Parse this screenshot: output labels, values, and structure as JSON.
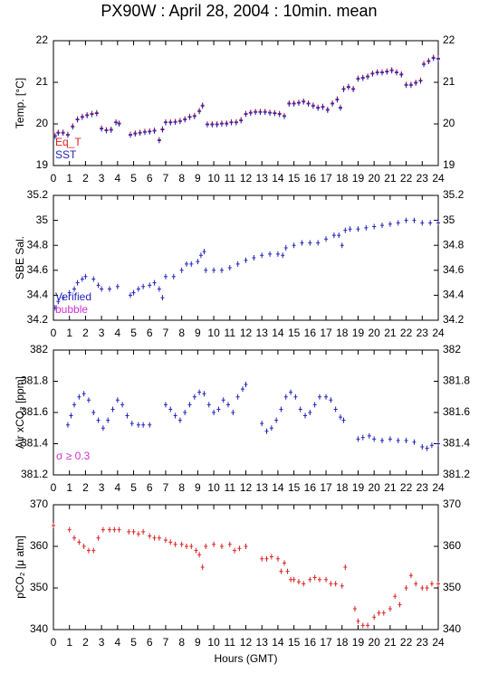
{
  "title": "PX90W : April 28, 2004 : 10min. mean",
  "chart_data": [
    {
      "type": "scatter",
      "ylabel": "Temp. [°C]",
      "legend": "lower left",
      "xlim": [
        0,
        24
      ],
      "xticks": [
        0,
        1,
        2,
        3,
        4,
        5,
        6,
        7,
        8,
        9,
        10,
        11,
        12,
        13,
        14,
        15,
        16,
        17,
        18,
        19,
        20,
        21,
        22,
        23,
        24
      ],
      "ylim": [
        19,
        22
      ],
      "yticks": [
        19,
        20,
        21,
        22
      ],
      "x": [
        0.1,
        0.3,
        0.6,
        0.9,
        1.2,
        1.5,
        1.8,
        2.1,
        2.4,
        2.7,
        3.0,
        3.3,
        3.6,
        3.9,
        4.1,
        4.8,
        5.1,
        5.4,
        5.7,
        6.0,
        6.3,
        6.6,
        6.8,
        7.0,
        7.3,
        7.6,
        7.9,
        8.2,
        8.5,
        8.8,
        9.1,
        9.3,
        9.6,
        9.9,
        10.2,
        10.5,
        10.8,
        11.1,
        11.4,
        11.7,
        12.0,
        12.3,
        12.6,
        12.9,
        13.2,
        13.5,
        13.8,
        14.1,
        14.4,
        14.7,
        15.0,
        15.3,
        15.6,
        15.9,
        16.2,
        16.5,
        16.8,
        17.1,
        17.4,
        17.7,
        17.9,
        18.1,
        18.4,
        18.7,
        19.0,
        19.3,
        19.6,
        19.9,
        20.2,
        20.5,
        20.8,
        21.1,
        21.4,
        21.7,
        22.0,
        22.3,
        22.6,
        22.9,
        23.1,
        23.4,
        23.7,
        24.0
      ],
      "series": [
        {
          "name": "Eq_T",
          "color": "#dd2222",
          "values": [
            19.72,
            19.8,
            19.8,
            19.75,
            19.95,
            20.12,
            20.18,
            20.22,
            20.25,
            20.27,
            19.9,
            19.86,
            19.87,
            20.05,
            20.02,
            19.75,
            19.78,
            19.8,
            19.82,
            19.83,
            19.85,
            19.62,
            19.88,
            20.05,
            20.05,
            20.06,
            20.08,
            20.12,
            20.18,
            20.2,
            20.32,
            20.45,
            20.0,
            20.0,
            20.0,
            20.02,
            20.02,
            20.05,
            20.05,
            20.1,
            20.25,
            20.28,
            20.3,
            20.3,
            20.3,
            20.28,
            20.27,
            20.25,
            20.2,
            20.5,
            20.5,
            20.52,
            20.55,
            20.5,
            20.45,
            20.4,
            20.42,
            20.35,
            20.5,
            20.6,
            20.4,
            20.85,
            20.9,
            20.85,
            21.1,
            21.12,
            21.15,
            21.22,
            21.25,
            21.25,
            21.27,
            21.3,
            21.25,
            21.2,
            20.95,
            20.95,
            21.0,
            21.05,
            21.45,
            21.52,
            21.6,
            21.58
          ]
        },
        {
          "name": "SST",
          "color": "#2222bb",
          "values": [
            19.7,
            19.78,
            19.78,
            19.73,
            19.93,
            20.1,
            20.16,
            20.2,
            20.23,
            20.25,
            19.88,
            19.84,
            19.85,
            20.03,
            20.0,
            19.73,
            19.76,
            19.78,
            19.8,
            19.81,
            19.83,
            19.6,
            19.86,
            20.03,
            20.03,
            20.04,
            20.06,
            20.1,
            20.16,
            20.18,
            20.3,
            20.43,
            19.98,
            19.98,
            19.98,
            20.0,
            20.0,
            20.03,
            20.03,
            20.08,
            20.23,
            20.26,
            20.28,
            20.28,
            20.28,
            20.26,
            20.25,
            20.23,
            20.18,
            20.48,
            20.48,
            20.5,
            20.53,
            20.48,
            20.43,
            20.38,
            20.4,
            20.33,
            20.48,
            20.58,
            20.38,
            20.83,
            20.88,
            20.83,
            21.08,
            21.1,
            21.13,
            21.2,
            21.23,
            21.23,
            21.25,
            21.28,
            21.23,
            21.18,
            20.93,
            20.93,
            20.98,
            21.03,
            21.43,
            21.5,
            21.58,
            21.56
          ]
        }
      ]
    },
    {
      "type": "scatter",
      "ylabel": "SBE Sal.",
      "legend": "lower left",
      "xlim": [
        0,
        24
      ],
      "xticks": [
        0,
        1,
        2,
        3,
        4,
        5,
        6,
        7,
        8,
        9,
        10,
        11,
        12,
        13,
        14,
        15,
        16,
        17,
        18,
        19,
        20,
        21,
        22,
        23,
        24
      ],
      "ylim": [
        34.2,
        35.2
      ],
      "yticks": [
        34.2,
        34.4,
        34.6,
        34.8,
        35,
        35.2
      ],
      "series": [
        {
          "name": "Verified",
          "color": "#2222bb",
          "x": [
            0.1,
            0.3,
            0.6,
            1.0,
            1.3,
            1.5,
            1.8,
            2.0,
            2.5,
            2.8,
            3.0,
            3.5,
            4.0,
            4.8,
            5.0,
            5.3,
            5.6,
            6.0,
            6.3,
            6.6,
            6.8,
            7.0,
            7.5,
            8.0,
            8.3,
            8.6,
            9.0,
            9.2,
            9.4,
            9.5,
            10.0,
            10.5,
            11.0,
            11.5,
            12.0,
            12.5,
            13.0,
            13.5,
            14.0,
            14.3,
            14.5,
            15.0,
            15.5,
            16.0,
            16.5,
            17.0,
            17.5,
            17.8,
            18.0,
            18.2,
            18.5,
            19.0,
            19.5,
            20.0,
            20.5,
            21.0,
            21.5,
            22.0,
            22.5,
            23.0,
            23.5,
            24.0
          ],
          "values": [
            34.3,
            34.35,
            34.38,
            34.42,
            34.45,
            34.5,
            34.53,
            34.55,
            34.53,
            34.48,
            34.45,
            34.45,
            34.47,
            34.4,
            34.42,
            34.45,
            34.47,
            34.48,
            34.5,
            34.45,
            34.38,
            34.55,
            34.55,
            34.6,
            34.65,
            34.65,
            34.67,
            34.72,
            34.75,
            34.6,
            34.6,
            34.6,
            34.62,
            34.65,
            34.68,
            34.7,
            34.72,
            34.73,
            34.73,
            34.72,
            34.78,
            34.8,
            34.82,
            34.82,
            34.82,
            34.85,
            34.88,
            34.88,
            34.8,
            34.92,
            34.93,
            34.93,
            34.94,
            34.95,
            34.96,
            34.97,
            34.98,
            35.0,
            35.0,
            34.98,
            34.98,
            34.98
          ]
        },
        {
          "name": "bubble",
          "color": "#cc33cc",
          "x": [],
          "values": []
        }
      ]
    },
    {
      "type": "scatter",
      "ylabel": "Air xCO₂ [ppm]",
      "color": "#2222bb",
      "annotations": [
        {
          "text": "σ ≥ 0.3",
          "color": "#cc33cc"
        }
      ],
      "xlim": [
        0,
        24
      ],
      "xticks": [
        0,
        1,
        2,
        3,
        4,
        5,
        6,
        7,
        8,
        9,
        10,
        11,
        12,
        13,
        14,
        15,
        16,
        17,
        18,
        19,
        20,
        21,
        22,
        23,
        24
      ],
      "ylim": [
        381.2,
        382
      ],
      "yticks": [
        381.2,
        381.4,
        381.6,
        381.8,
        382
      ],
      "x": [
        0.9,
        1.1,
        1.3,
        1.6,
        1.9,
        2.2,
        2.5,
        2.8,
        3.1,
        3.4,
        3.7,
        4.0,
        4.3,
        4.6,
        4.9,
        5.3,
        5.6,
        6.0,
        7.0,
        7.3,
        7.6,
        7.9,
        8.2,
        8.5,
        8.8,
        9.1,
        9.4,
        9.7,
        10.0,
        10.3,
        10.6,
        10.9,
        11.2,
        11.5,
        11.8,
        12.0,
        13.0,
        13.3,
        13.6,
        13.9,
        14.2,
        14.5,
        14.8,
        15.1,
        15.4,
        15.7,
        16.0,
        16.3,
        16.6,
        17.0,
        17.3,
        17.6,
        17.9,
        18.1,
        19.0,
        19.3,
        19.7,
        20.0,
        20.5,
        21.0,
        21.5,
        22.0,
        22.5,
        23.0,
        23.3,
        23.6,
        24.0
      ],
      "values": [
        381.52,
        381.58,
        381.65,
        381.7,
        381.72,
        381.68,
        381.6,
        381.55,
        381.5,
        381.55,
        381.62,
        381.68,
        381.65,
        381.58,
        381.53,
        381.52,
        381.52,
        381.52,
        381.65,
        381.62,
        381.58,
        381.55,
        381.6,
        381.65,
        381.7,
        381.73,
        381.72,
        381.65,
        381.6,
        381.62,
        381.68,
        381.65,
        381.6,
        381.7,
        381.75,
        381.78,
        381.53,
        381.48,
        381.5,
        381.55,
        381.62,
        381.7,
        381.73,
        381.7,
        381.62,
        381.58,
        381.6,
        381.65,
        381.7,
        381.7,
        381.68,
        381.62,
        381.57,
        381.55,
        381.43,
        381.44,
        381.45,
        381.43,
        381.42,
        381.43,
        381.42,
        381.42,
        381.41,
        381.38,
        381.37,
        381.39,
        381.4
      ]
    },
    {
      "type": "scatter",
      "ylabel": "pCO₂ [μ atm]",
      "xlabel": "Hours (GMT)",
      "color": "#dd2222",
      "xlim": [
        0,
        24
      ],
      "xticks": [
        0,
        1,
        2,
        3,
        4,
        5,
        6,
        7,
        8,
        9,
        10,
        11,
        12,
        13,
        14,
        15,
        16,
        17,
        18,
        19,
        20,
        21,
        22,
        23,
        24
      ],
      "ylim": [
        340,
        370
      ],
      "yticks": [
        340,
        350,
        360,
        370
      ],
      "x": [
        0.0,
        1.0,
        1.3,
        1.6,
        1.9,
        2.2,
        2.5,
        2.8,
        3.1,
        3.5,
        3.8,
        4.1,
        4.7,
        5.0,
        5.3,
        5.6,
        6.0,
        6.3,
        6.6,
        7.0,
        7.3,
        7.6,
        8.0,
        8.3,
        8.6,
        8.9,
        9.1,
        9.3,
        9.5,
        10.0,
        10.5,
        11.0,
        11.3,
        11.6,
        12.0,
        13.0,
        13.3,
        13.6,
        14.0,
        14.2,
        14.4,
        14.6,
        14.8,
        15.0,
        15.3,
        15.6,
        16.0,
        16.3,
        16.6,
        17.0,
        17.3,
        17.6,
        18.0,
        18.2,
        18.8,
        19.0,
        19.3,
        19.6,
        20.0,
        20.3,
        20.6,
        21.0,
        21.3,
        21.6,
        22.0,
        22.3,
        22.6,
        23.0,
        23.3,
        23.6,
        24.0
      ],
      "values": [
        365,
        364,
        362,
        361,
        360,
        359,
        359,
        362,
        364,
        364,
        364,
        364,
        363.5,
        363.5,
        363,
        363.5,
        362.5,
        362,
        362,
        361.5,
        361,
        360.5,
        360.5,
        360,
        360,
        359,
        358,
        355,
        360,
        360.5,
        360,
        360.5,
        359,
        359.5,
        360,
        357,
        357,
        357.5,
        357,
        354,
        356,
        354,
        352,
        352,
        351.5,
        351,
        352,
        352.5,
        352,
        352,
        351,
        351,
        350.5,
        355,
        345,
        342,
        341,
        341,
        343,
        344,
        344,
        345,
        348,
        346,
        350,
        353,
        351,
        350,
        350,
        351,
        351
      ]
    }
  ]
}
